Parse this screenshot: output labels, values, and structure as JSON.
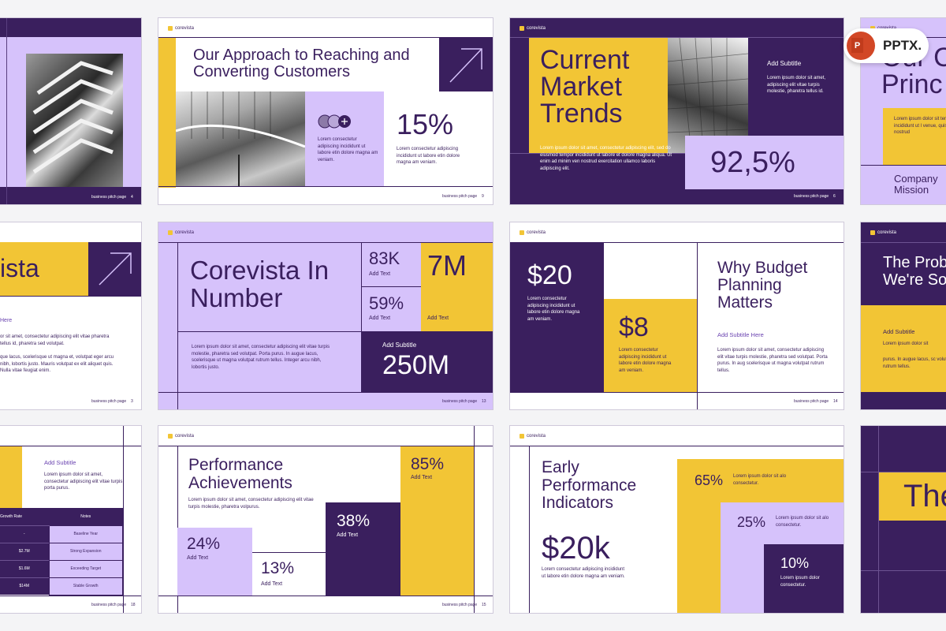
{
  "brand": "corevista",
  "footer_label": "business pitch page",
  "badge": "PPTX.",
  "s1": {
    "page": "4"
  },
  "s2": {
    "title": "Our Approach to Reaching and Converting Customers",
    "body": "Lorem consectetur adipiscing incididunt ut labore etin dolore magna am veniam.",
    "stat": "15%",
    "stat_body": "Lorem consectetur adipiscing incididunt ut labore etin dolore magna am veniam.",
    "page": "9"
  },
  "s3": {
    "title": "Current Market Trends",
    "subtitle": "Add Subtitle",
    "sub_body": "Lorem ipsum dolor sit amet, adipiscing elit vitae turpis molestie, pharetra tellus id.",
    "body": "Lorem ipsum dolor sit amet, consectetur adipiscing elit, sed do eiusmod tempor incididunt ut labore et dolore magna aliqua. Ut enim ad minim ven nostrud exercitation ullamco laboris adipiscing elit.",
    "stat": "92,5%",
    "page": "6"
  },
  "s4": {
    "title": "Our C Princ",
    "body": "Lorem ipsum dolor sit tempor incididunt ut l venue, quis nostrud",
    "mission": "Company Mission"
  },
  "s5": {
    "title": "ista",
    "sub": "Here",
    "body1": "or sit amet, consectetur adipiscing elit vitae pharetra tellus id, pharetra sed volutpat.",
    "body2": "que lacus, scelerisque ut magna et, volutpat eger arcu nibh, lobortis justo. Mauris volutpat ex elit aliquet quis. Nulla vitae feugiat enim.",
    "page": "3"
  },
  "s6": {
    "title": "Corevista In Number",
    "body": "Lorem ipsum dolor sit amet, consectetur adipiscing elit vitae turpis molestie, pharetra sed volutpat. Porta purus. In augue lacus, scelerisque ut magna volutpat rutrum tellus. Integer arcu nibh, lobortis justo.",
    "stat1": "83K",
    "stat1_label": "Add Text",
    "stat2": "59%",
    "stat2_label": "Add Text",
    "stat3": "7M",
    "stat3_label": "Add Text",
    "sub": "Add Subtitle",
    "big": "250M",
    "page": "13"
  },
  "s7": {
    "stat1": "$20",
    "stat1_body": "Lorem consectetur adipiscing incididunt ut labore etin dolore magna am veniam.",
    "stat2": "$8",
    "stat2_body": "Lorem consectetur adipiscing incididunt ut labore etin dolore magna am veniam.",
    "title": "Why Budget Planning Matters",
    "sub": "Add Subtitle Here",
    "body": "Lorem ipsum dolor sit amet, consectetur adipiscing elit vitae turpis molestie, pharetra sed volutpat. Porta purus. In aug scelerisque ut magna volutpat rutrum tellus.",
    "page": "14"
  },
  "s8": {
    "title": "The Prob We're So",
    "sub": "Add Subtitle",
    "body1": "Lorem ipsum dolor sit",
    "body2": "purus. In augue lacus, sc volutpat rutrum tellus."
  },
  "s9": {
    "sub": "Add Subtitle",
    "body": "Lorem ipsum dolor sit amet, consectetur adipiscing elit vitae turpis porta purus.",
    "headers": [
      "Growth Rate",
      "Notes"
    ],
    "rows": [
      [
        "-",
        "Baseline Year"
      ],
      [
        "$2.7M",
        "Strong Expansion"
      ],
      [
        "$1.6M",
        "Exceeding Target"
      ],
      [
        "$14M",
        "Stable Growth"
      ]
    ],
    "page": "18"
  },
  "s10": {
    "title": "Performance Achievements",
    "body": "Lorem ipsum dolor sit amet, consectetur adipiscing elit vitae turpis molestie, pharetra volpurus.",
    "stat1": "24%",
    "stat1_label": "Add Text",
    "stat2": "13%",
    "stat2_label": "Add Text",
    "stat3": "38%",
    "stat3_label": "Add Text",
    "stat4": "85%",
    "stat4_label": "Add Text",
    "page": "15"
  },
  "s11": {
    "title": "Early Performance Indicators",
    "big": "$20k",
    "body": "Lorem consectetur adipiscing incididunt ut labore etin dolore magna am veniam.",
    "stat1": "65%",
    "stat1_body": "Lorem ipsum dolor sit alo consectetur.",
    "stat2": "25%",
    "stat2_body": "Lorem ipsum dolor sit alo consectetur.",
    "stat3": "10%",
    "stat3_body": "Lorem ipsum dolor consectetur."
  },
  "s12": {
    "title": "The"
  }
}
